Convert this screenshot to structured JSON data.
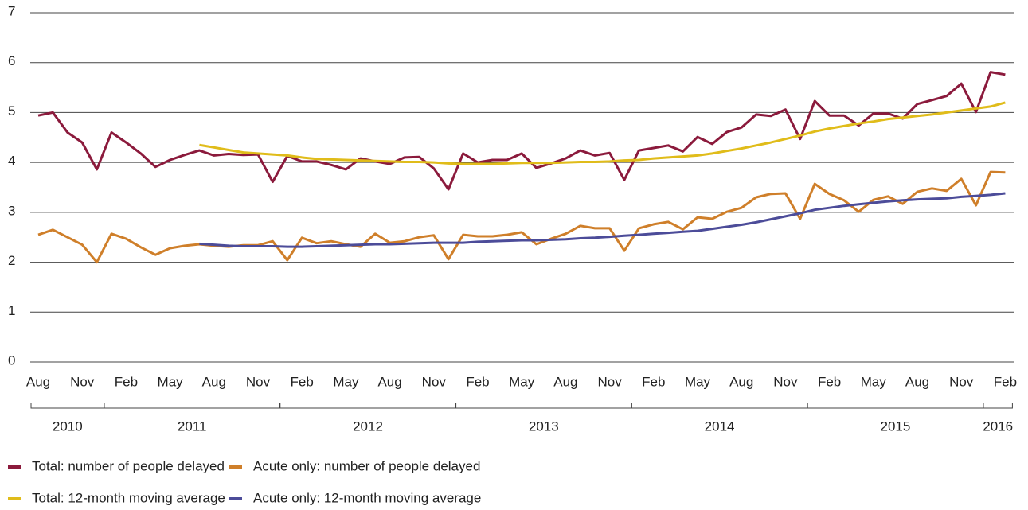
{
  "chart_data": {
    "type": "line",
    "categories": [
      "Aug",
      null,
      null,
      "Nov",
      null,
      null,
      "Feb",
      null,
      null,
      "May",
      null,
      null,
      "Aug",
      null,
      null,
      "Nov",
      null,
      null,
      "Feb",
      null,
      null,
      "May",
      null,
      null,
      "Aug",
      null,
      null,
      "Nov",
      null,
      null,
      "Feb",
      null,
      null,
      "May",
      null,
      null,
      "Aug",
      null,
      null,
      "Nov",
      null,
      null,
      "Feb",
      null,
      null,
      "May",
      null,
      null,
      "Aug",
      null,
      null,
      "Nov",
      null,
      null,
      "Feb",
      null,
      null,
      "May",
      null,
      null,
      "Aug",
      null,
      null,
      "Nov",
      null,
      null,
      "Feb"
    ],
    "year_groups": [
      {
        "label": "2010",
        "months": 5
      },
      {
        "label": "2011",
        "months": 12
      },
      {
        "label": "2012",
        "months": 12
      },
      {
        "label": "2013",
        "months": 12
      },
      {
        "label": "2014",
        "months": 12
      },
      {
        "label": "2015",
        "months": 12
      },
      {
        "label": "2016",
        "months": 2
      }
    ],
    "ylim": [
      0,
      7
    ],
    "yticks": [
      0,
      1,
      2,
      3,
      4,
      5,
      6,
      7
    ],
    "grid": true,
    "series": [
      {
        "name": "Total: number of people delayed",
        "color": "#8b1a3c",
        "values": [
          4.94,
          5.0,
          4.6,
          4.4,
          3.86,
          4.6,
          4.4,
          4.18,
          3.91,
          4.05,
          4.15,
          4.24,
          4.14,
          4.17,
          4.15,
          4.16,
          3.61,
          4.13,
          4.02,
          4.02,
          3.95,
          3.86,
          4.08,
          4.02,
          3.97,
          4.1,
          4.11,
          3.88,
          3.46,
          4.18,
          4.0,
          4.05,
          4.05,
          4.18,
          3.89,
          3.98,
          4.08,
          4.24,
          4.14,
          4.19,
          3.65,
          4.24,
          4.29,
          4.34,
          4.22,
          4.51,
          4.37,
          4.61,
          4.7,
          4.96,
          4.93,
          5.06,
          4.47,
          5.23,
          4.94,
          4.94,
          4.74,
          4.98,
          4.98,
          4.88,
          5.17,
          5.25,
          5.33,
          5.58,
          5.01,
          5.81,
          5.76
        ]
      },
      {
        "name": "Total: 12-month moving average",
        "color": "#e0bc1a",
        "values": [
          null,
          null,
          null,
          null,
          null,
          null,
          null,
          null,
          null,
          null,
          null,
          4.35,
          4.3,
          4.25,
          4.2,
          4.18,
          4.16,
          4.14,
          4.1,
          4.07,
          4.06,
          4.05,
          4.04,
          4.03,
          4.02,
          4.01,
          4.01,
          4.0,
          3.98,
          3.97,
          3.97,
          3.97,
          3.98,
          3.99,
          3.99,
          3.99,
          4.0,
          4.01,
          4.01,
          4.02,
          4.04,
          4.05,
          4.08,
          4.1,
          4.12,
          4.14,
          4.18,
          4.23,
          4.28,
          4.34,
          4.4,
          4.47,
          4.54,
          4.62,
          4.68,
          4.73,
          4.78,
          4.82,
          4.87,
          4.9,
          4.93,
          4.96,
          5.0,
          5.04,
          5.08,
          5.12,
          5.2
        ]
      },
      {
        "name": "Acute only: number of people delayed",
        "color": "#cf7f2a",
        "values": [
          2.55,
          2.65,
          2.5,
          2.35,
          2.0,
          2.57,
          2.47,
          2.3,
          2.15,
          2.28,
          2.33,
          2.36,
          2.33,
          2.31,
          2.34,
          2.34,
          2.42,
          2.04,
          2.49,
          2.38,
          2.42,
          2.36,
          2.31,
          2.57,
          2.39,
          2.42,
          2.5,
          2.54,
          2.06,
          2.55,
          2.52,
          2.52,
          2.55,
          2.6,
          2.36,
          2.47,
          2.57,
          2.73,
          2.68,
          2.68,
          2.23,
          2.68,
          2.76,
          2.81,
          2.66,
          2.9,
          2.87,
          3.01,
          3.09,
          3.3,
          3.37,
          3.38,
          2.87,
          3.57,
          3.37,
          3.24,
          3.01,
          3.25,
          3.32,
          3.17,
          3.41,
          3.48,
          3.43,
          3.67,
          3.14,
          3.81,
          3.8
        ]
      },
      {
        "name": "Acute only: 12-month moving average",
        "color": "#4c4c99",
        "values": [
          null,
          null,
          null,
          null,
          null,
          null,
          null,
          null,
          null,
          null,
          null,
          2.37,
          2.35,
          2.33,
          2.32,
          2.32,
          2.32,
          2.31,
          2.31,
          2.32,
          2.33,
          2.34,
          2.35,
          2.36,
          2.36,
          2.37,
          2.38,
          2.39,
          2.39,
          2.39,
          2.41,
          2.42,
          2.43,
          2.44,
          2.44,
          2.45,
          2.46,
          2.48,
          2.49,
          2.51,
          2.53,
          2.55,
          2.57,
          2.59,
          2.61,
          2.63,
          2.67,
          2.71,
          2.75,
          2.8,
          2.86,
          2.92,
          2.98,
          3.05,
          3.09,
          3.13,
          3.16,
          3.19,
          3.22,
          3.24,
          3.26,
          3.27,
          3.28,
          3.31,
          3.33,
          3.35,
          3.38
        ]
      }
    ]
  }
}
